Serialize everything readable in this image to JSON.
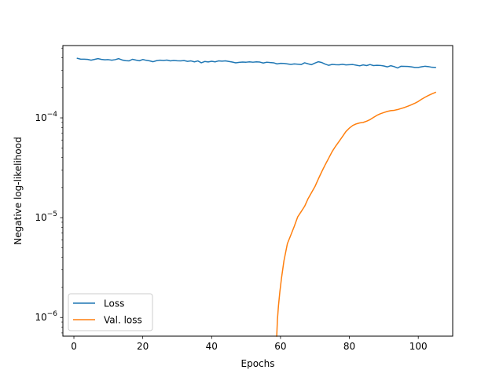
{
  "chart_data": {
    "type": "line",
    "title": "",
    "xlabel": "Epochs",
    "ylabel": "Negative log-likelihood",
    "yscale": "log",
    "xlim": [
      -3.2,
      110
    ],
    "ylim": [
      6.5e-07,
      0.00053
    ],
    "x_ticks": [
      0,
      20,
      40,
      60,
      80,
      100
    ],
    "y_ticks": [
      {
        "value": 1e-06,
        "base": "10",
        "exp": "−6"
      },
      {
        "value": 1e-05,
        "base": "10",
        "exp": "−5"
      },
      {
        "value": 0.0001,
        "base": "10",
        "exp": "−4"
      }
    ],
    "grid": false,
    "legend_position": "lower-left",
    "series": [
      {
        "name": "Loss",
        "color": "#1f77b4",
        "x": [
          1,
          2,
          3,
          4,
          5,
          6,
          7,
          8,
          9,
          10,
          11,
          12,
          13,
          14,
          15,
          16,
          17,
          18,
          19,
          20,
          21,
          22,
          23,
          24,
          25,
          26,
          27,
          28,
          29,
          30,
          31,
          32,
          33,
          34,
          35,
          36,
          37,
          38,
          39,
          40,
          41,
          42,
          43,
          44,
          45,
          46,
          47,
          48,
          49,
          50,
          51,
          52,
          53,
          54,
          55,
          56,
          57,
          58,
          59,
          60,
          61,
          62,
          63,
          64,
          65,
          66,
          67,
          68,
          69,
          70,
          71,
          72,
          73,
          74,
          75,
          76,
          77,
          78,
          79,
          80,
          81,
          82,
          83,
          84,
          85,
          86,
          87,
          88,
          89,
          90,
          91,
          92,
          93,
          94,
          95,
          96,
          97,
          98,
          99,
          100,
          101,
          102,
          103,
          104,
          105
        ],
        "values": [
          0.000395,
          0.000387,
          0.000387,
          0.000385,
          0.000378,
          0.000385,
          0.000392,
          0.000385,
          0.000382,
          0.000383,
          0.000378,
          0.000383,
          0.000392,
          0.00038,
          0.000374,
          0.000372,
          0.000386,
          0.000379,
          0.000373,
          0.000384,
          0.000377,
          0.000372,
          0.000365,
          0.000374,
          0.000378,
          0.000376,
          0.000379,
          0.000372,
          0.000376,
          0.000373,
          0.000372,
          0.000375,
          0.000368,
          0.000372,
          0.000364,
          0.000372,
          0.000356,
          0.000367,
          0.000363,
          0.000369,
          0.000364,
          0.000372,
          0.00037,
          0.000372,
          0.000367,
          0.000362,
          0.000356,
          0.00036,
          0.000362,
          0.000361,
          0.000364,
          0.000361,
          0.000364,
          0.000362,
          0.000354,
          0.000361,
          0.000358,
          0.000356,
          0.000347,
          0.000352,
          0.000351,
          0.000347,
          0.000343,
          0.000347,
          0.000345,
          0.000342,
          0.000356,
          0.000348,
          0.000341,
          0.000354,
          0.000365,
          0.000358,
          0.000345,
          0.000336,
          0.000343,
          0.000341,
          0.00034,
          0.000344,
          0.000339,
          0.000341,
          0.000342,
          0.000337,
          0.000332,
          0.000339,
          0.000334,
          0.000342,
          0.000334,
          0.000336,
          0.000335,
          0.000331,
          0.000324,
          0.000333,
          0.000326,
          0.000316,
          0.000329,
          0.000328,
          0.000327,
          0.000324,
          0.00032,
          0.00032,
          0.000325,
          0.000329,
          0.000326,
          0.000321,
          0.00032
        ]
      },
      {
        "name": "Val. loss",
        "color": "#ff7f0e",
        "x": [
          58.9,
          59.1,
          59.4,
          59.8,
          60.3,
          61,
          62,
          63,
          64,
          65,
          66,
          67,
          68,
          69,
          70,
          71,
          72,
          73,
          74,
          75,
          76,
          77,
          78,
          79,
          80,
          81,
          82,
          83,
          84,
          85,
          86,
          87,
          88,
          89,
          90,
          91,
          92,
          93,
          94,
          95,
          96,
          97,
          98,
          99,
          100,
          101,
          102,
          103,
          104,
          105
        ],
        "values": [
          6.5e-07,
          9.5e-07,
          1.3e-06,
          1.8e-06,
          2.5e-06,
          3.7e-06,
          5.5e-06,
          6.7e-06,
          8.2e-06,
          1.02e-05,
          1.15e-05,
          1.3e-05,
          1.55e-05,
          1.78e-05,
          2.05e-05,
          2.45e-05,
          2.9e-05,
          3.4e-05,
          3.95e-05,
          4.6e-05,
          5.2e-05,
          5.8e-05,
          6.5e-05,
          7.3e-05,
          7.9e-05,
          8.4e-05,
          8.7e-05,
          8.9e-05,
          9e-05,
          9.25e-05,
          9.6e-05,
          0.000101,
          0.000106,
          0.00011,
          0.000113,
          0.000116,
          0.000118,
          0.000119,
          0.000121,
          0.000124,
          0.000127,
          0.000131,
          0.000135,
          0.00014,
          0.000146,
          0.000154,
          0.000161,
          0.000168,
          0.000174,
          0.00018
        ]
      }
    ]
  }
}
